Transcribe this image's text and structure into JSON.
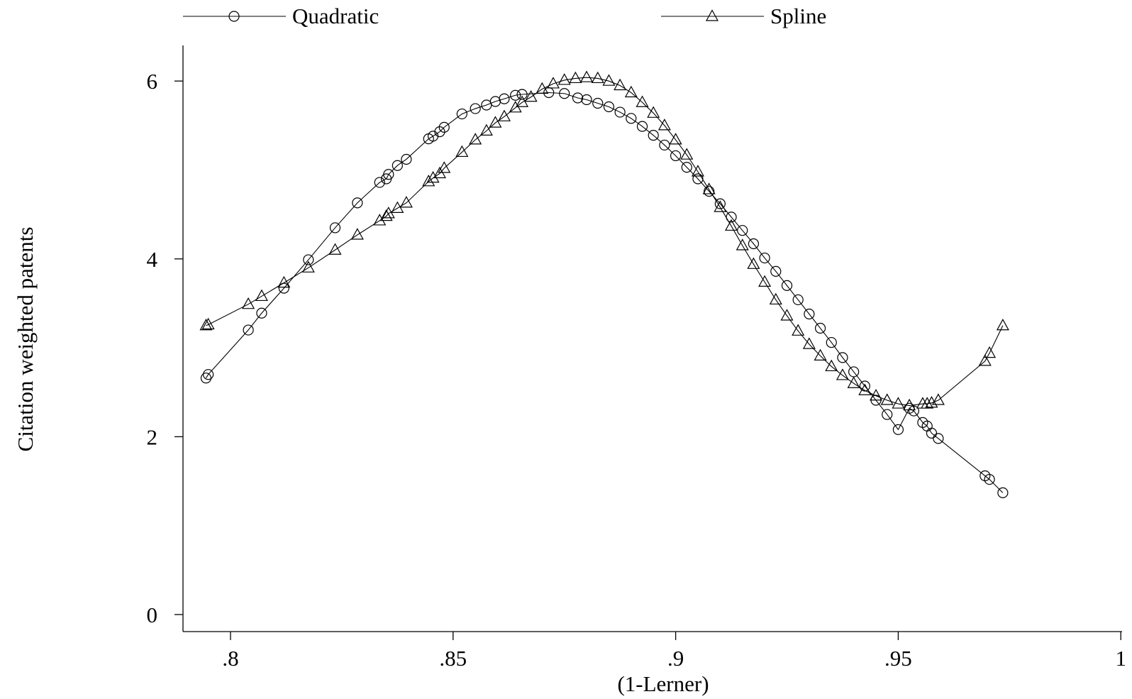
{
  "chart_data": {
    "type": "scatter",
    "xlabel": "(1-Lerner)",
    "ylabel": "Citation weighted patents",
    "xlim": [
      0.79,
      1.0
    ],
    "ylim": [
      0,
      6.3
    ],
    "x_ticks": [
      0.8,
      0.85,
      0.9,
      0.95,
      1.0
    ],
    "x_tick_labels": [
      ".8",
      ".85",
      ".9",
      ".95",
      "1"
    ],
    "y_ticks": [
      0,
      2,
      4,
      6
    ],
    "y_tick_labels": [
      "0",
      "2",
      "4",
      "6"
    ],
    "grid": false,
    "legend_position": "top",
    "series": [
      {
        "name": "Quadratic",
        "marker": "circle",
        "x": [
          0.7945,
          0.795,
          0.804,
          0.807,
          0.812,
          0.8175,
          0.8235,
          0.8285,
          0.8335,
          0.835,
          0.8355,
          0.8375,
          0.8395,
          0.8445,
          0.8455,
          0.847,
          0.848,
          0.852,
          0.855,
          0.8575,
          0.8595,
          0.8615,
          0.864,
          0.8655,
          0.8715,
          0.875,
          0.878,
          0.88,
          0.8825,
          0.885,
          0.8875,
          0.89,
          0.8925,
          0.895,
          0.8975,
          0.9,
          0.9025,
          0.905,
          0.9075,
          0.91,
          0.9125,
          0.915,
          0.9175,
          0.92,
          0.9225,
          0.925,
          0.9275,
          0.93,
          0.9325,
          0.935,
          0.9375,
          0.94,
          0.9425,
          0.945,
          0.9475,
          0.95,
          0.9525,
          0.9535,
          0.9555,
          0.9565,
          0.9575,
          0.959,
          0.9695,
          0.9705,
          0.9735
        ],
        "y": [
          2.66,
          2.7,
          3.2,
          3.39,
          3.67,
          3.99,
          4.35,
          4.63,
          4.86,
          4.9,
          4.95,
          5.05,
          5.12,
          5.35,
          5.38,
          5.43,
          5.48,
          5.63,
          5.69,
          5.73,
          5.77,
          5.8,
          5.84,
          5.85,
          5.87,
          5.86,
          5.81,
          5.79,
          5.75,
          5.71,
          5.65,
          5.58,
          5.49,
          5.39,
          5.28,
          5.16,
          5.03,
          4.9,
          4.76,
          4.62,
          4.47,
          4.32,
          4.17,
          4.01,
          3.86,
          3.7,
          3.54,
          3.38,
          3.22,
          3.06,
          2.89,
          2.73,
          2.57,
          2.41,
          2.25,
          2.08,
          2.32,
          2.29,
          2.16,
          2.12,
          2.04,
          1.98,
          1.56,
          1.52,
          1.37
        ]
      },
      {
        "name": "Spline",
        "marker": "triangle",
        "x": [
          0.7945,
          0.795,
          0.804,
          0.807,
          0.812,
          0.8175,
          0.8235,
          0.8285,
          0.8335,
          0.835,
          0.8355,
          0.8375,
          0.8395,
          0.8445,
          0.8455,
          0.847,
          0.848,
          0.852,
          0.855,
          0.8575,
          0.8595,
          0.8615,
          0.864,
          0.8655,
          0.8675,
          0.87,
          0.8725,
          0.875,
          0.8775,
          0.88,
          0.8825,
          0.885,
          0.8875,
          0.89,
          0.8925,
          0.895,
          0.8975,
          0.9,
          0.9025,
          0.905,
          0.9075,
          0.91,
          0.9125,
          0.915,
          0.9175,
          0.92,
          0.9225,
          0.925,
          0.9275,
          0.93,
          0.9325,
          0.935,
          0.9375,
          0.94,
          0.9425,
          0.945,
          0.9475,
          0.95,
          0.9525,
          0.9555,
          0.9565,
          0.9575,
          0.959,
          0.9695,
          0.9705,
          0.9735
        ],
        "y": [
          3.25,
          3.26,
          3.49,
          3.58,
          3.73,
          3.9,
          4.1,
          4.27,
          4.43,
          4.48,
          4.51,
          4.57,
          4.63,
          4.87,
          4.91,
          4.96,
          5.02,
          5.2,
          5.34,
          5.44,
          5.53,
          5.6,
          5.7,
          5.76,
          5.82,
          5.91,
          5.97,
          6.01,
          6.03,
          6.04,
          6.03,
          6.0,
          5.95,
          5.87,
          5.76,
          5.64,
          5.5,
          5.34,
          5.17,
          4.98,
          4.78,
          4.58,
          4.37,
          4.15,
          3.94,
          3.74,
          3.54,
          3.36,
          3.19,
          3.04,
          2.91,
          2.79,
          2.69,
          2.6,
          2.52,
          2.46,
          2.41,
          2.37,
          2.35,
          2.37,
          2.37,
          2.38,
          2.41,
          2.85,
          2.94,
          3.25
        ]
      }
    ]
  }
}
